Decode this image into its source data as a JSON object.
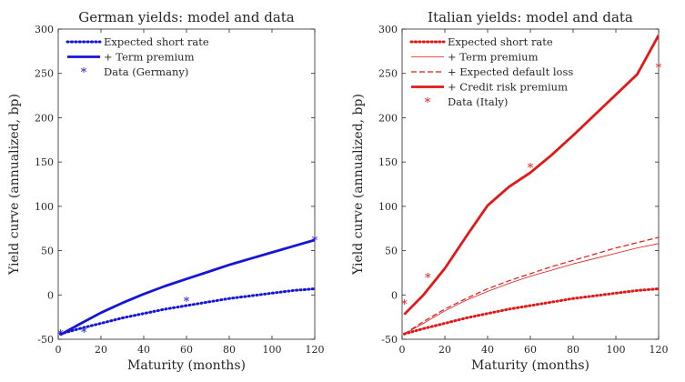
{
  "chart_data": [
    {
      "type": "line",
      "title": "German yields: model and data",
      "xlabel": "Maturity (months)",
      "ylabel": "Yield curve (annualized, bp)",
      "xlim": [
        0,
        120
      ],
      "ylim": [
        -50,
        300
      ],
      "xticks": [
        "0",
        "20",
        "40",
        "60",
        "80",
        "100",
        "120"
      ],
      "yticks": [
        "-50",
        "0",
        "50",
        "100",
        "150",
        "200",
        "250",
        "300"
      ],
      "grid": false,
      "legend_position": "top-left",
      "color": "#1515d8",
      "series": [
        {
          "name": "Expected short rate",
          "style": "dotted",
          "x": [
            1,
            10,
            20,
            30,
            40,
            50,
            60,
            70,
            80,
            90,
            100,
            110,
            120
          ],
          "y": [
            -44,
            -38,
            -32,
            -26,
            -21,
            -16,
            -12,
            -8,
            -4,
            -1,
            2,
            5,
            7
          ]
        },
        {
          "name": "+ Term premium",
          "style": "solid",
          "x": [
            1,
            10,
            20,
            30,
            40,
            50,
            60,
            70,
            80,
            90,
            100,
            110,
            120
          ],
          "y": [
            -45,
            -33,
            -20,
            -9,
            1,
            10,
            18,
            26,
            34,
            41,
            48,
            55,
            62
          ]
        },
        {
          "name": "Data (Germany)",
          "style": "markers",
          "marker": "*",
          "x": [
            1,
            12,
            60,
            120
          ],
          "y": [
            -44,
            -42,
            -7,
            62
          ]
        }
      ]
    },
    {
      "type": "line",
      "title": "Italian yields: model and data",
      "xlabel": "Maturity (months)",
      "ylabel": "Yield curve (annualized, bp)",
      "xlim": [
        0,
        120
      ],
      "ylim": [
        -50,
        300
      ],
      "xticks": [
        "0",
        "20",
        "40",
        "60",
        "80",
        "100",
        "120"
      ],
      "yticks": [
        "-50",
        "0",
        "50",
        "100",
        "150",
        "200",
        "250",
        "300"
      ],
      "grid": false,
      "legend_position": "top-left",
      "color": "#e01818",
      "series": [
        {
          "name": "Expected short rate",
          "style": "dotted",
          "x": [
            1,
            10,
            20,
            30,
            40,
            50,
            60,
            70,
            80,
            90,
            100,
            110,
            120
          ],
          "y": [
            -44,
            -38,
            -32,
            -26,
            -21,
            -16,
            -12,
            -8,
            -4,
            -1,
            2,
            5,
            7
          ]
        },
        {
          "name": "+ Term premium",
          "style": "thin",
          "x": [
            1,
            10,
            20,
            30,
            40,
            50,
            60,
            70,
            80,
            90,
            100,
            110,
            120
          ],
          "y": [
            -44,
            -32,
            -18,
            -6,
            4,
            13,
            21,
            28,
            35,
            41,
            47,
            53,
            58
          ]
        },
        {
          "name": "+ Expected default loss",
          "style": "dashed",
          "x": [
            1,
            10,
            20,
            30,
            40,
            50,
            60,
            70,
            80,
            90,
            100,
            110,
            120
          ],
          "y": [
            -44,
            -30,
            -16,
            -4,
            7,
            16,
            24,
            32,
            39,
            46,
            53,
            59,
            65
          ]
        },
        {
          "name": "+ Credit risk premium",
          "style": "solid",
          "x": [
            1,
            10,
            20,
            30,
            40,
            50,
            60,
            70,
            80,
            90,
            100,
            110,
            120
          ],
          "y": [
            -22,
            0,
            30,
            66,
            101,
            122,
            138,
            158,
            180,
            203,
            226,
            249,
            293
          ]
        },
        {
          "name": "Data (Italy)",
          "style": "markers",
          "marker": "*",
          "x": [
            1,
            12,
            60,
            120
          ],
          "y": [
            -10,
            20,
            144,
            257
          ]
        }
      ]
    }
  ]
}
